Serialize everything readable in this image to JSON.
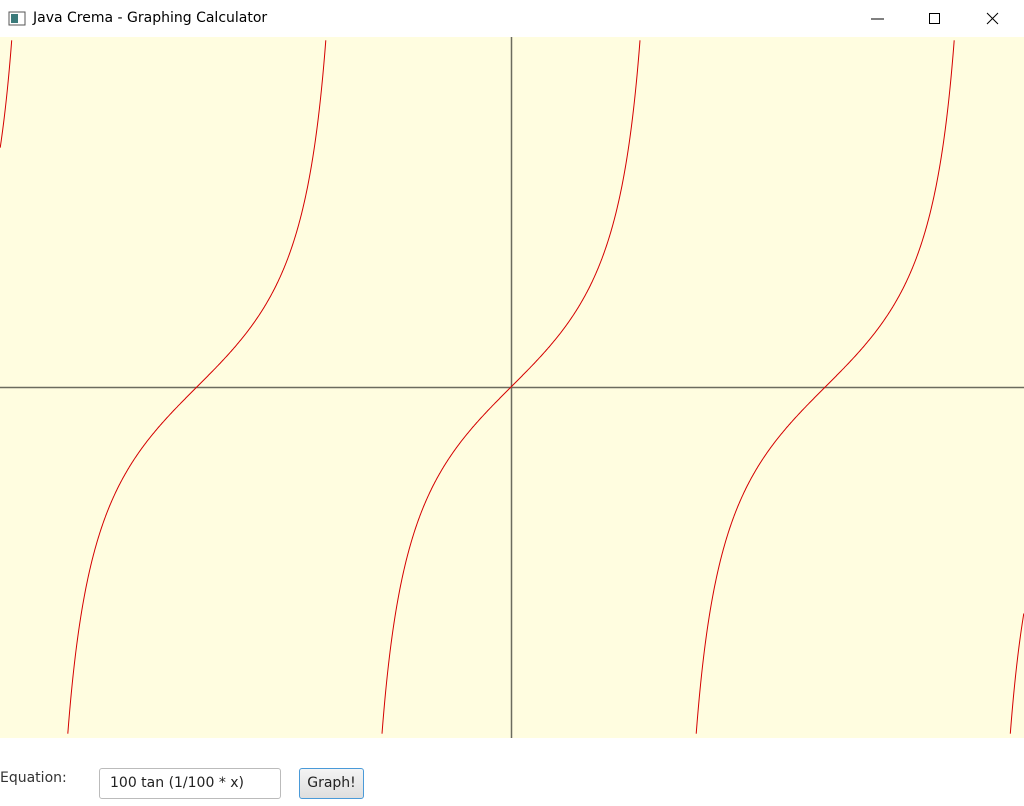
{
  "window": {
    "title": "Java Crema - Graphing Calculator"
  },
  "form": {
    "label": "Equation:",
    "equation": "100 tan (1/100 * x)",
    "button": "Graph!"
  }
}
